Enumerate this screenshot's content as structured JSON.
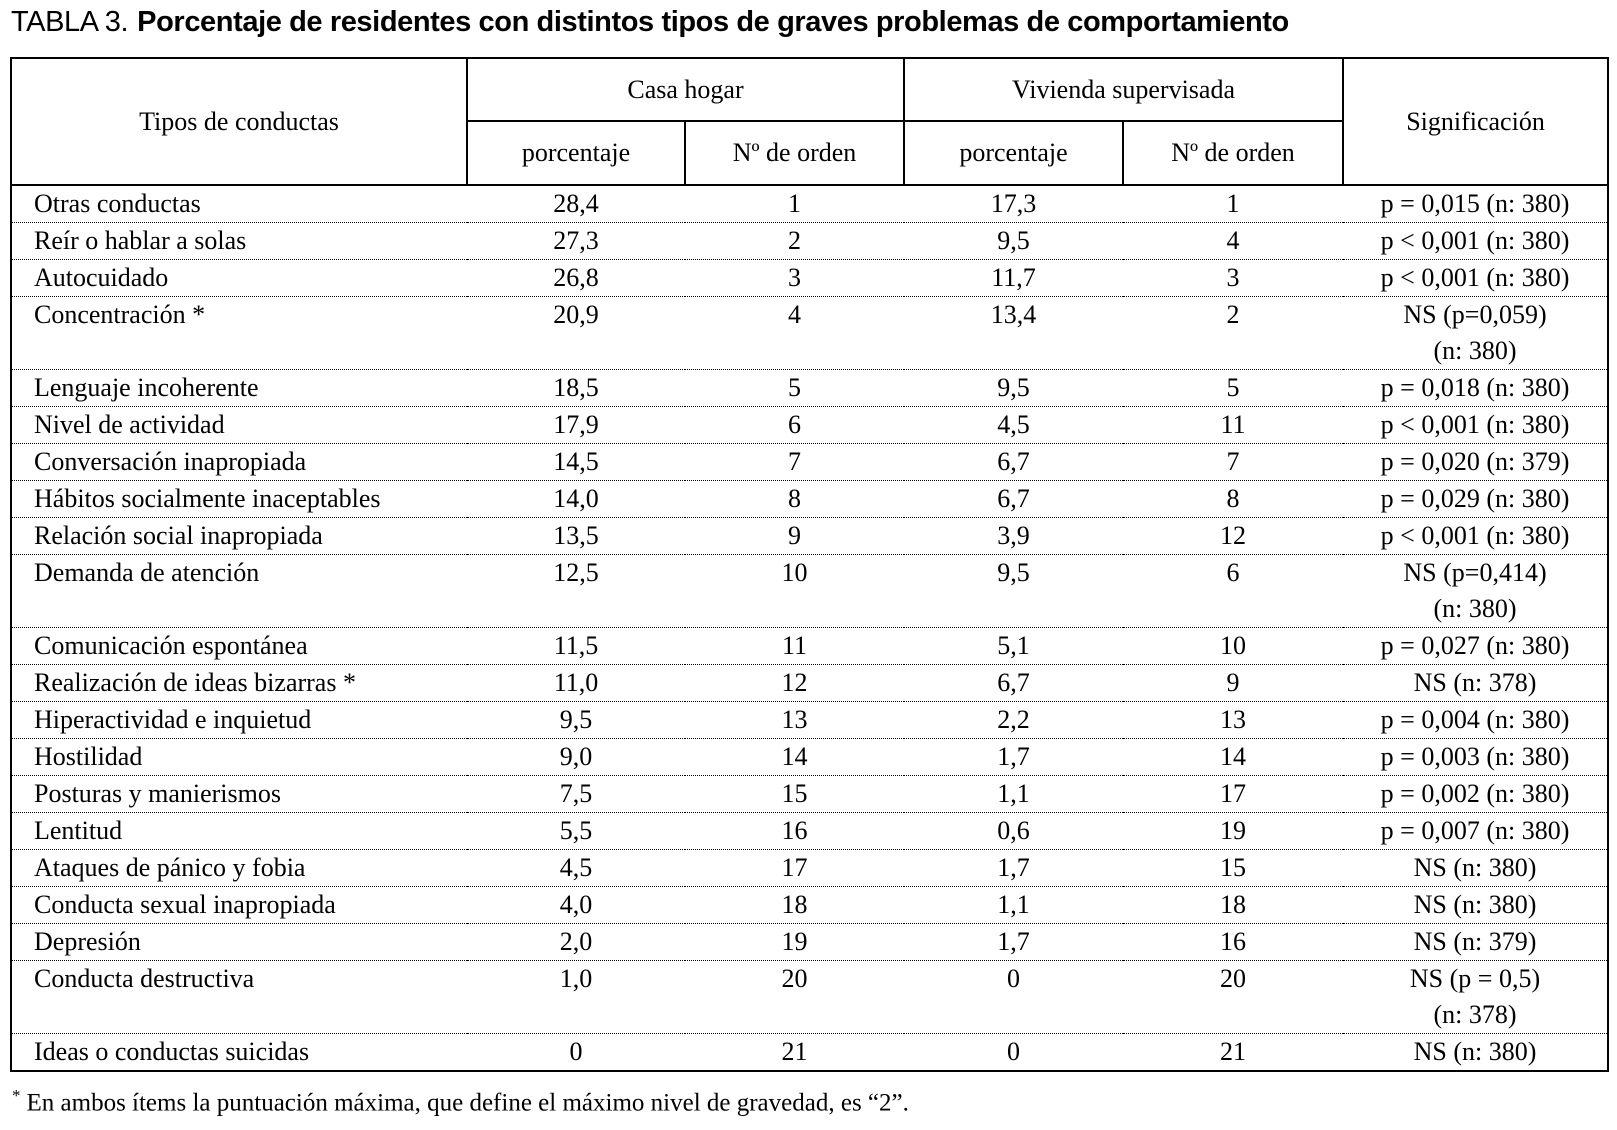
{
  "title": {
    "label": "TABLA 3.",
    "text": "Porcentaje de residentes con distintos tipos de graves problemas de comportamiento"
  },
  "table": {
    "headers": {
      "tipos": "Tipos de conductas",
      "casa_hogar": "Casa hogar",
      "vivienda_supervisada": "Vivienda supervisada",
      "significacion": "Significación"
    },
    "sub_headers": [
      "porcentaje",
      "Nº de orden",
      "porcentaje",
      "Nº de orden"
    ],
    "rows": [
      {
        "conducta": "Otras conductas",
        "ch_pct": "28,4",
        "ch_orden": "1",
        "vs_pct": "17,3",
        "vs_orden": "1",
        "sig": "p = 0,015 (n: 380)"
      },
      {
        "conducta": "Reír o hablar a solas",
        "ch_pct": "27,3",
        "ch_orden": "2",
        "vs_pct": "9,5",
        "vs_orden": "4",
        "sig": "p < 0,001 (n: 380)"
      },
      {
        "conducta": "Autocuidado",
        "ch_pct": "26,8",
        "ch_orden": "3",
        "vs_pct": "11,7",
        "vs_orden": "3",
        "sig": "p < 0,001 (n: 380)"
      },
      {
        "conducta": "Concentración *",
        "ch_pct": "20,9",
        "ch_orden": "4",
        "vs_pct": "13,4",
        "vs_orden": "2",
        "sig": "NS (p=0,059)\n(n: 380)"
      },
      {
        "conducta": "Lenguaje incoherente",
        "ch_pct": "18,5",
        "ch_orden": "5",
        "vs_pct": "9,5",
        "vs_orden": "5",
        "sig": "p = 0,018 (n: 380)"
      },
      {
        "conducta": "Nivel de actividad",
        "ch_pct": "17,9",
        "ch_orden": "6",
        "vs_pct": "4,5",
        "vs_orden": "11",
        "sig": "p < 0,001 (n: 380)"
      },
      {
        "conducta": "Conversación inapropiada",
        "ch_pct": "14,5",
        "ch_orden": "7",
        "vs_pct": "6,7",
        "vs_orden": "7",
        "sig": "p = 0,020 (n: 379)"
      },
      {
        "conducta": "Hábitos socialmente inaceptables",
        "ch_pct": "14,0",
        "ch_orden": "8",
        "vs_pct": "6,7",
        "vs_orden": "8",
        "sig": "p = 0,029 (n: 380)"
      },
      {
        "conducta": "Relación social inapropiada",
        "ch_pct": "13,5",
        "ch_orden": "9",
        "vs_pct": "3,9",
        "vs_orden": "12",
        "sig": "p < 0,001 (n: 380)"
      },
      {
        "conducta": "Demanda de atención",
        "ch_pct": "12,5",
        "ch_orden": "10",
        "vs_pct": "9,5",
        "vs_orden": "6",
        "sig": "NS (p=0,414)\n(n: 380)"
      },
      {
        "conducta": "Comunicación espontánea",
        "ch_pct": "11,5",
        "ch_orden": "11",
        "vs_pct": "5,1",
        "vs_orden": "10",
        "sig": "p = 0,027 (n: 380)"
      },
      {
        "conducta": "Realización de ideas bizarras *",
        "ch_pct": "11,0",
        "ch_orden": "12",
        "vs_pct": "6,7",
        "vs_orden": "9",
        "sig": "NS (n: 378)"
      },
      {
        "conducta": "Hiperactividad e inquietud",
        "ch_pct": "9,5",
        "ch_orden": "13",
        "vs_pct": "2,2",
        "vs_orden": "13",
        "sig": "p = 0,004 (n: 380)"
      },
      {
        "conducta": "Hostilidad",
        "ch_pct": "9,0",
        "ch_orden": "14",
        "vs_pct": "1,7",
        "vs_orden": "14",
        "sig": "p = 0,003 (n: 380)"
      },
      {
        "conducta": "Posturas y manierismos",
        "ch_pct": "7,5",
        "ch_orden": "15",
        "vs_pct": "1,1",
        "vs_orden": "17",
        "sig": "p = 0,002 (n: 380)"
      },
      {
        "conducta": "Lentitud",
        "ch_pct": "5,5",
        "ch_orden": "16",
        "vs_pct": "0,6",
        "vs_orden": "19",
        "sig": "p = 0,007 (n: 380)"
      },
      {
        "conducta": "Ataques de pánico y fobia",
        "ch_pct": "4,5",
        "ch_orden": "17",
        "vs_pct": "1,7",
        "vs_orden": "15",
        "sig": "NS (n: 380)"
      },
      {
        "conducta": "Conducta sexual inapropiada",
        "ch_pct": "4,0",
        "ch_orden": "18",
        "vs_pct": "1,1",
        "vs_orden": "18",
        "sig": "NS (n: 380)"
      },
      {
        "conducta": "Depresión",
        "ch_pct": "2,0",
        "ch_orden": "19",
        "vs_pct": "1,7",
        "vs_orden": "16",
        "sig": "NS (n: 379)"
      },
      {
        "conducta": "Conducta destructiva",
        "ch_pct": "1,0",
        "ch_orden": "20",
        "vs_pct": "0",
        "vs_orden": "20",
        "sig": "NS (p = 0,5)\n(n: 378)"
      },
      {
        "conducta": "Ideas o conductas suicidas",
        "ch_pct": "0",
        "ch_orden": "21",
        "vs_pct": "0",
        "vs_orden": "21",
        "sig": "NS (n: 380)"
      }
    ]
  },
  "footnote": {
    "marker": "*",
    "text": "En ambos ítems la puntuación máxima, que define el máximo nivel de gravedad, es “2”."
  }
}
